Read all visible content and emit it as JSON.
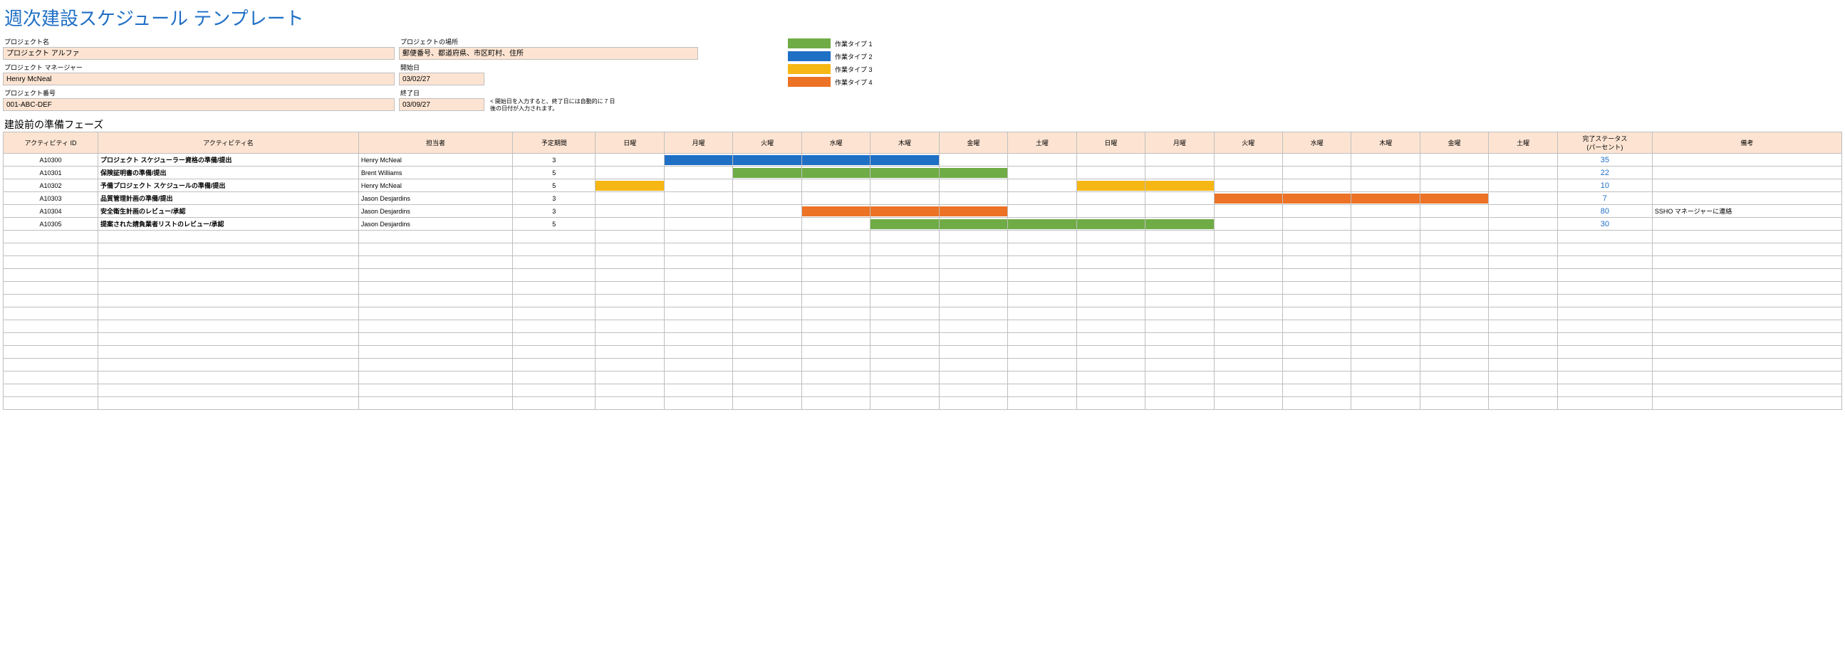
{
  "title": "週次建設スケジュール テンプレート",
  "labels": {
    "projectName": "プロジェクト名",
    "projectManager": "プロジェクト マネージャー",
    "projectNumber": "プロジェクト番号",
    "projectLocation": "プロジェクトの場所",
    "startDate": "開始日",
    "endDate": "終了日",
    "endNote": "< 開始日を入力すると、終了日には自動的に 7 日後の日付が入力されます。"
  },
  "project": {
    "name": "プロジェクト アルファ",
    "manager": "Henry McNeal",
    "number": "001-ABC-DEF",
    "location": "郵便番号、都道府県、市区町村、住所",
    "start": "03/02/27",
    "end": "03/09/27"
  },
  "legend": [
    {
      "label": "作業タイプ 1",
      "color": "#6fac46"
    },
    {
      "label": "作業タイプ 2",
      "color": "#1f6fc5"
    },
    {
      "label": "作業タイプ 3",
      "color": "#f6b715"
    },
    {
      "label": "作業タイプ 4",
      "color": "#ec7225"
    }
  ],
  "sectionTitle": "建設前の準備フェーズ",
  "columns": {
    "id": "アクティビティ ID",
    "name": "アクティビティ名",
    "assignee": "担当者",
    "duration": "予定期間",
    "days": [
      "日曜",
      "月曜",
      "火曜",
      "水曜",
      "木曜",
      "金曜",
      "土曜",
      "日曜",
      "月曜",
      "火曜",
      "水曜",
      "木曜",
      "金曜",
      "土曜"
    ],
    "status": "完了ステータス\n(パーセント)",
    "note": "備考"
  },
  "rows": [
    {
      "id": "A10300",
      "name": "プロジェクト スケジューラー資格の準備/提出",
      "assignee": "Henry McNeal",
      "duration": "3",
      "bars": [
        {
          "start": 1,
          "len": 4,
          "color": "#1f6fc5"
        }
      ],
      "status": "35",
      "note": ""
    },
    {
      "id": "A10301",
      "name": "保険証明書の準備/提出",
      "assignee": "Brent Williams",
      "duration": "5",
      "bars": [
        {
          "start": 2,
          "len": 4,
          "color": "#6fac46"
        }
      ],
      "status": "22",
      "note": ""
    },
    {
      "id": "A10302",
      "name": "予備プロジェクト スケジュールの準備/提出",
      "assignee": "Henry McNeal",
      "duration": "5",
      "bars": [
        {
          "start": 0,
          "len": 1,
          "color": "#f6b715"
        },
        {
          "start": 7,
          "len": 2,
          "color": "#f6b715"
        }
      ],
      "status": "10",
      "note": ""
    },
    {
      "id": "A10303",
      "name": "品質管理計画の準備/提出",
      "assignee": "Jason Desjardins",
      "duration": "3",
      "bars": [
        {
          "start": 9,
          "len": 4,
          "color": "#ec7225"
        }
      ],
      "status": "7",
      "note": ""
    },
    {
      "id": "A10304",
      "name": "安全衛生計画のレビュー/承認",
      "assignee": "Jason Desjardins",
      "duration": "3",
      "bars": [
        {
          "start": 3,
          "len": 1,
          "color": "#ec7225"
        },
        {
          "start": 4,
          "len": 2,
          "color": "#ec7225"
        }
      ],
      "status": "80",
      "note": "SSHO マネージャーに連絡"
    },
    {
      "id": "A10305",
      "name": "提案された請負業者リストのレビュー/承認",
      "assignee": "Jason Desjardins",
      "duration": "5",
      "bars": [
        {
          "start": 4,
          "len": 5,
          "color": "#6fac46"
        }
      ],
      "status": "30",
      "note": ""
    }
  ],
  "emptyRows": 14
}
